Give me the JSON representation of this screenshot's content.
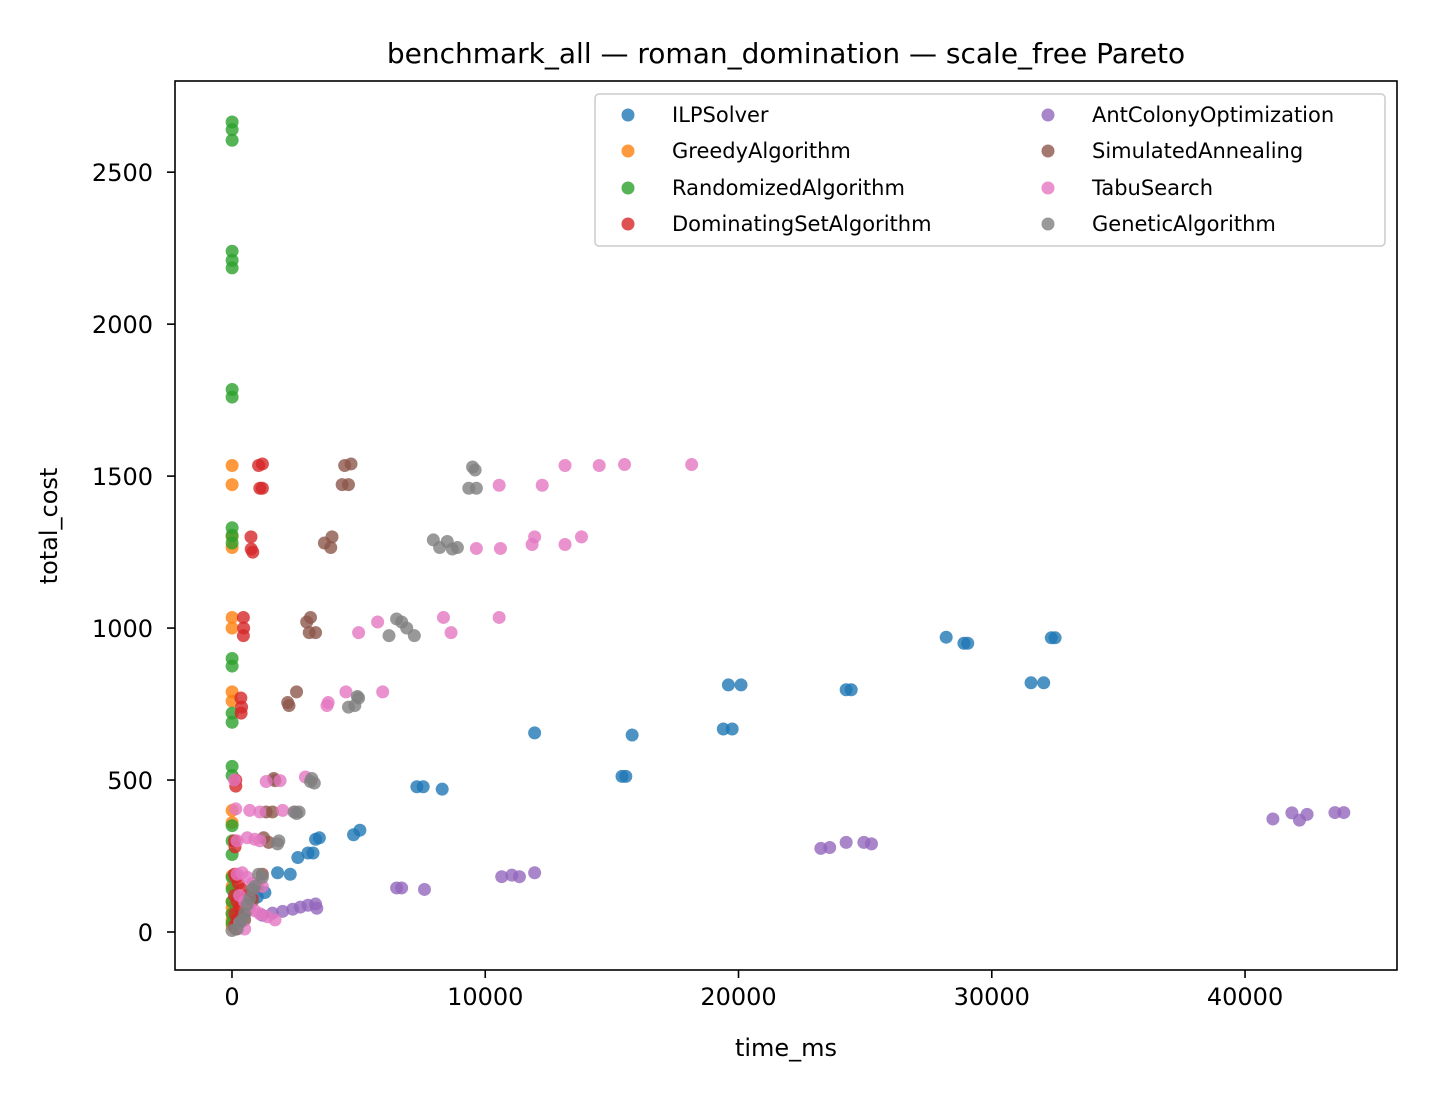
{
  "chart_data": {
    "type": "scatter",
    "title": "benchmark_all — roman_domination — scale_free Pareto",
    "xlabel": "time_ms",
    "ylabel": "total_cost",
    "xlim": [
      -2250,
      46000
    ],
    "ylim": [
      -125,
      2800
    ],
    "xticks": [
      0,
      10000,
      20000,
      30000,
      40000
    ],
    "yticks": [
      0,
      500,
      1000,
      1500,
      2000,
      2500
    ],
    "grid": false,
    "legend_position": "top-right",
    "legend_columns": 2,
    "series": [
      {
        "name": "ILPSolver",
        "color": "#1f77b4",
        "points": [
          [
            3300,
            305
          ],
          [
            3450,
            310
          ],
          [
            4800,
            320
          ],
          [
            5050,
            335
          ],
          [
            7300,
            478
          ],
          [
            7550,
            478
          ],
          [
            8300,
            470
          ],
          [
            11950,
            655
          ],
          [
            15400,
            512
          ],
          [
            15550,
            512
          ],
          [
            15800,
            648
          ],
          [
            19400,
            668
          ],
          [
            19750,
            668
          ],
          [
            19600,
            813
          ],
          [
            20100,
            813
          ],
          [
            24250,
            797
          ],
          [
            24450,
            797
          ],
          [
            28200,
            970
          ],
          [
            28900,
            950
          ],
          [
            29050,
            950
          ],
          [
            31550,
            820
          ],
          [
            32050,
            820
          ],
          [
            32350,
            968
          ],
          [
            32500,
            968
          ],
          [
            2300,
            190
          ],
          [
            2600,
            245
          ],
          [
            3000,
            260
          ],
          [
            3200,
            260
          ],
          [
            1800,
            195
          ],
          [
            1300,
            130
          ],
          [
            1000,
            115
          ]
        ]
      },
      {
        "name": "GreedyAlgorithm",
        "color": "#ff7f0e",
        "points": [
          [
            5,
            1535
          ],
          [
            5,
            1472
          ],
          [
            5,
            1265
          ],
          [
            5,
            1300
          ],
          [
            5,
            1035
          ],
          [
            5,
            1000
          ],
          [
            5,
            790
          ],
          [
            5,
            760
          ],
          [
            5,
            400
          ],
          [
            5,
            360
          ],
          [
            5,
            185
          ],
          [
            5,
            150
          ],
          [
            5,
            100
          ],
          [
            5,
            80
          ],
          [
            5,
            60
          ],
          [
            5,
            40
          ],
          [
            5,
            20
          ]
        ]
      },
      {
        "name": "RandomizedAlgorithm",
        "color": "#2ca02c",
        "points": [
          [
            5,
            2665
          ],
          [
            5,
            2640
          ],
          [
            5,
            2605
          ],
          [
            5,
            2240
          ],
          [
            5,
            2210
          ],
          [
            5,
            2185
          ],
          [
            5,
            1785
          ],
          [
            5,
            1760
          ],
          [
            5,
            1330
          ],
          [
            5,
            1305
          ],
          [
            5,
            1280
          ],
          [
            5,
            900
          ],
          [
            5,
            875
          ],
          [
            5,
            720
          ],
          [
            5,
            690
          ],
          [
            5,
            545
          ],
          [
            5,
            515
          ],
          [
            5,
            350
          ],
          [
            5,
            300
          ],
          [
            5,
            255
          ],
          [
            5,
            180
          ],
          [
            5,
            140
          ],
          [
            5,
            100
          ],
          [
            5,
            60
          ],
          [
            5,
            30
          ]
        ]
      },
      {
        "name": "DominatingSetAlgorithm",
        "color": "#d62728",
        "points": [
          [
            1050,
            1535
          ],
          [
            1200,
            1540
          ],
          [
            1100,
            1460
          ],
          [
            1200,
            1460
          ],
          [
            750,
            1300
          ],
          [
            760,
            1260
          ],
          [
            820,
            1250
          ],
          [
            450,
            1035
          ],
          [
            460,
            1000
          ],
          [
            450,
            975
          ],
          [
            350,
            770
          ],
          [
            380,
            740
          ],
          [
            360,
            720
          ],
          [
            150,
            500
          ],
          [
            150,
            480
          ],
          [
            100,
            300
          ],
          [
            120,
            280
          ],
          [
            100,
            190
          ],
          [
            150,
            180
          ],
          [
            250,
            160
          ],
          [
            400,
            140
          ],
          [
            600,
            120
          ],
          [
            800,
            110
          ],
          [
            100,
            120
          ],
          [
            200,
            100
          ],
          [
            300,
            80
          ],
          [
            120,
            60
          ],
          [
            200,
            40
          ],
          [
            100,
            20
          ],
          [
            150,
            10
          ]
        ]
      },
      {
        "name": "AntColonyOptimization",
        "color": "#9467bd",
        "points": [
          [
            6500,
            145
          ],
          [
            6700,
            145
          ],
          [
            7600,
            140
          ],
          [
            10650,
            182
          ],
          [
            11050,
            187
          ],
          [
            11350,
            182
          ],
          [
            11950,
            195
          ],
          [
            23250,
            275
          ],
          [
            23600,
            278
          ],
          [
            24250,
            295
          ],
          [
            24950,
            295
          ],
          [
            25250,
            290
          ],
          [
            41100,
            372
          ],
          [
            41850,
            392
          ],
          [
            42150,
            368
          ],
          [
            42450,
            387
          ],
          [
            43550,
            393
          ],
          [
            43900,
            393
          ],
          [
            1200,
            55
          ],
          [
            1600,
            62
          ],
          [
            2000,
            68
          ],
          [
            2400,
            75
          ],
          [
            2700,
            82
          ],
          [
            3000,
            88
          ],
          [
            3300,
            92
          ],
          [
            3350,
            78
          ]
        ]
      },
      {
        "name": "SimulatedAnnealing",
        "color": "#8c564b",
        "points": [
          [
            4450,
            1535
          ],
          [
            4700,
            1540
          ],
          [
            4350,
            1472
          ],
          [
            4600,
            1472
          ],
          [
            3650,
            1280
          ],
          [
            3900,
            1265
          ],
          [
            3950,
            1300
          ],
          [
            2950,
            1020
          ],
          [
            3100,
            1035
          ],
          [
            3050,
            985
          ],
          [
            3300,
            985
          ],
          [
            2250,
            745
          ],
          [
            2200,
            755
          ],
          [
            2550,
            790
          ],
          [
            1650,
            505
          ],
          [
            1700,
            498
          ],
          [
            1350,
            395
          ],
          [
            1600,
            395
          ],
          [
            1250,
            310
          ],
          [
            1450,
            295
          ],
          [
            1200,
            190
          ],
          [
            1000,
            150
          ],
          [
            800,
            100
          ],
          [
            600,
            70
          ],
          [
            500,
            40
          ]
        ]
      },
      {
        "name": "TabuSearch",
        "color": "#e377c2",
        "points": [
          [
            13150,
            1535
          ],
          [
            14500,
            1535
          ],
          [
            15500,
            1538
          ],
          [
            18150,
            1538
          ],
          [
            10550,
            1470
          ],
          [
            12250,
            1470
          ],
          [
            9650,
            1262
          ],
          [
            10600,
            1262
          ],
          [
            11950,
            1300
          ],
          [
            11850,
            1275
          ],
          [
            13150,
            1275
          ],
          [
            13800,
            1300
          ],
          [
            5000,
            985
          ],
          [
            5750,
            1020
          ],
          [
            8350,
            1035
          ],
          [
            8650,
            985
          ],
          [
            10550,
            1035
          ],
          [
            3750,
            745
          ],
          [
            3800,
            755
          ],
          [
            4500,
            790
          ],
          [
            5950,
            790
          ],
          [
            100,
            500
          ],
          [
            1350,
            495
          ],
          [
            1900,
            498
          ],
          [
            2900,
            510
          ],
          [
            150,
            405
          ],
          [
            700,
            400
          ],
          [
            1100,
            395
          ],
          [
            2000,
            400
          ],
          [
            2500,
            395
          ],
          [
            200,
            300
          ],
          [
            600,
            310
          ],
          [
            900,
            305
          ],
          [
            1100,
            300
          ],
          [
            200,
            190
          ],
          [
            400,
            195
          ],
          [
            600,
            180
          ],
          [
            800,
            160
          ],
          [
            1200,
            150
          ],
          [
            300,
            120
          ],
          [
            500,
            100
          ],
          [
            700,
            80
          ],
          [
            900,
            70
          ],
          [
            1100,
            60
          ],
          [
            1400,
            50
          ],
          [
            1700,
            40
          ],
          [
            300,
            30
          ],
          [
            500,
            10
          ]
        ]
      },
      {
        "name": "GeneticAlgorithm",
        "color": "#7f7f7f",
        "points": [
          [
            9500,
            1530
          ],
          [
            9600,
            1520
          ],
          [
            9350,
            1460
          ],
          [
            9650,
            1460
          ],
          [
            7950,
            1290
          ],
          [
            8200,
            1265
          ],
          [
            8500,
            1285
          ],
          [
            8700,
            1260
          ],
          [
            8900,
            1265
          ],
          [
            6200,
            975
          ],
          [
            6500,
            1030
          ],
          [
            6700,
            1020
          ],
          [
            6900,
            1000
          ],
          [
            7200,
            975
          ],
          [
            4600,
            740
          ],
          [
            4850,
            745
          ],
          [
            4950,
            775
          ],
          [
            5000,
            770
          ],
          [
            3100,
            495
          ],
          [
            3150,
            505
          ],
          [
            3250,
            490
          ],
          [
            2450,
            395
          ],
          [
            2550,
            390
          ],
          [
            2650,
            395
          ],
          [
            1800,
            290
          ],
          [
            1850,
            300
          ],
          [
            1050,
            190
          ],
          [
            1200,
            180
          ],
          [
            900,
            150
          ],
          [
            800,
            140
          ],
          [
            700,
            110
          ],
          [
            600,
            90
          ],
          [
            500,
            60
          ],
          [
            400,
            40
          ],
          [
            300,
            30
          ],
          [
            200,
            10
          ],
          [
            0,
            5
          ]
        ]
      }
    ]
  }
}
